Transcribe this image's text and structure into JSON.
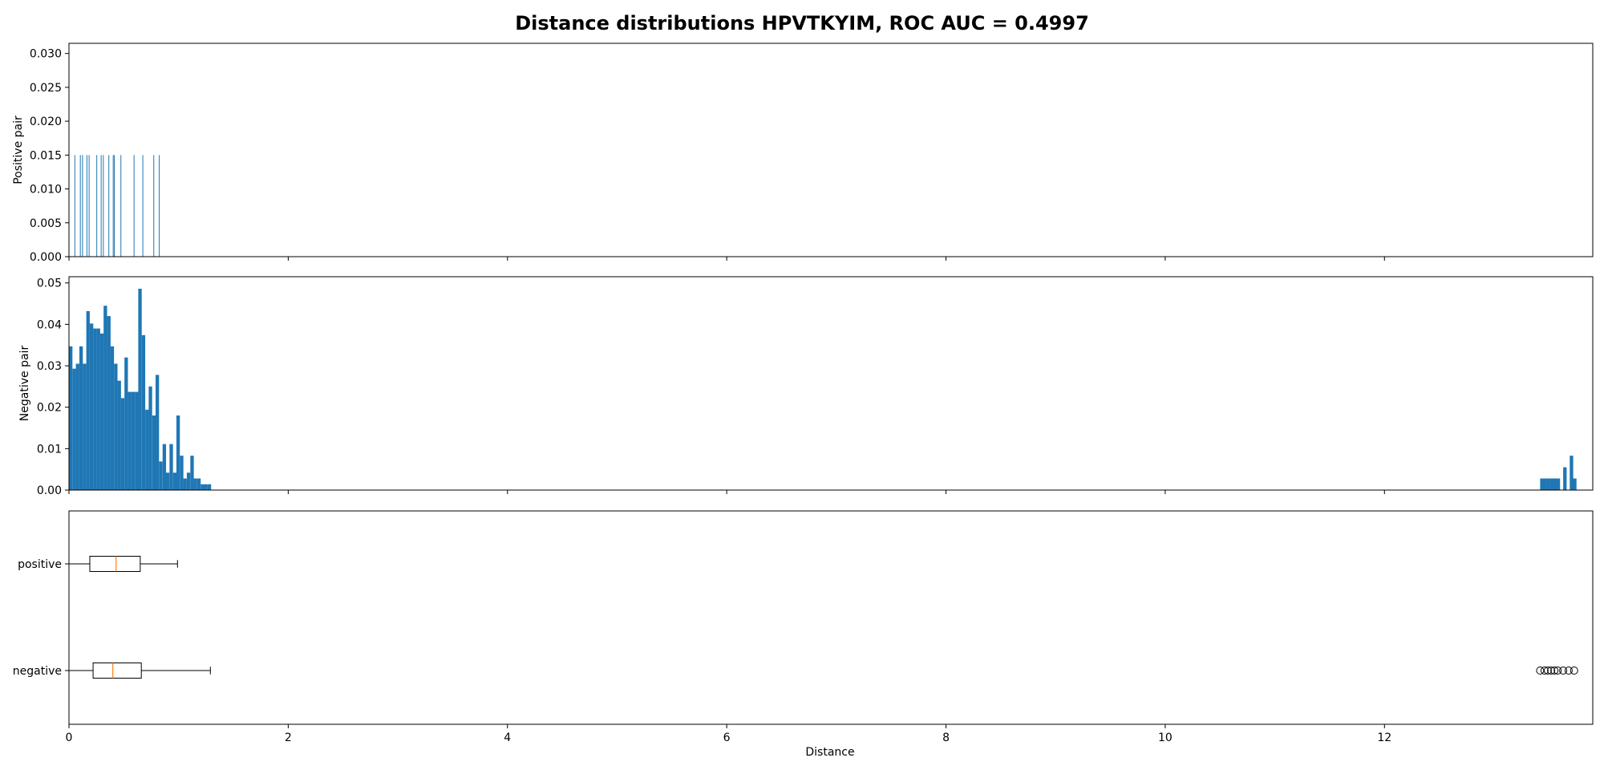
{
  "chart_data": {
    "type": "histogram+boxplot",
    "title": "Distance distributions HPVTKYIM, ROC AUC = 0.4997",
    "xlabel": "Distance",
    "xlim": [
      0,
      13.9
    ],
    "x_ticks": [
      "0",
      "2",
      "4",
      "6",
      "8",
      "10",
      "12"
    ],
    "x_tick_values": [
      0,
      2,
      4,
      6,
      8,
      10,
      12
    ],
    "bar_color": "#1f77b4",
    "median_color": "#ff7f0e",
    "panels": [
      {
        "name": "positive-histogram",
        "ylabel": "Positive pair",
        "ylim": [
          0,
          0.0315
        ],
        "y_ticks": [
          "0.000",
          "0.005",
          "0.010",
          "0.015",
          "0.020",
          "0.025",
          "0.030"
        ],
        "y_tick_values": [
          0,
          0.005,
          0.01,
          0.015,
          0.02,
          0.025,
          0.03
        ],
        "bin_width": 0.005,
        "bars": [
          [
            0.05,
            0.015
          ],
          [
            0.1,
            0.015
          ],
          [
            0.12,
            0.015
          ],
          [
            0.16,
            0.015
          ],
          [
            0.18,
            0.015
          ],
          [
            0.25,
            0.015
          ],
          [
            0.29,
            0.015
          ],
          [
            0.31,
            0.015
          ],
          [
            0.36,
            0.015
          ],
          [
            0.4,
            0.015
          ],
          [
            0.41,
            0.015
          ],
          [
            0.47,
            0.015
          ],
          [
            0.59,
            0.015
          ],
          [
            0.67,
            0.015
          ],
          [
            0.77,
            0.015
          ],
          [
            0.82,
            0.015
          ]
        ]
      },
      {
        "name": "negative-histogram",
        "ylabel": "Negative pair",
        "ylim": [
          0,
          0.0515
        ],
        "y_ticks": [
          "0.00",
          "0.01",
          "0.02",
          "0.03",
          "0.04",
          "0.05"
        ],
        "y_tick_values": [
          0,
          0.01,
          0.02,
          0.03,
          0.04,
          0.05
        ],
        "bin_width": 0.0316,
        "bars": [
          [
            0.0,
            0.0347
          ],
          [
            0.032,
            0.0293
          ],
          [
            0.063,
            0.0305
          ],
          [
            0.095,
            0.0347
          ],
          [
            0.126,
            0.0305
          ],
          [
            0.158,
            0.0432
          ],
          [
            0.19,
            0.0402
          ],
          [
            0.221,
            0.039
          ],
          [
            0.253,
            0.039
          ],
          [
            0.285,
            0.0378
          ],
          [
            0.316,
            0.0445
          ],
          [
            0.348,
            0.042
          ],
          [
            0.379,
            0.0347
          ],
          [
            0.411,
            0.0305
          ],
          [
            0.443,
            0.0264
          ],
          [
            0.474,
            0.0222
          ],
          [
            0.506,
            0.032
          ],
          [
            0.538,
            0.0237
          ],
          [
            0.569,
            0.0237
          ],
          [
            0.601,
            0.0237
          ],
          [
            0.632,
            0.0486
          ],
          [
            0.664,
            0.0374
          ],
          [
            0.696,
            0.0194
          ],
          [
            0.727,
            0.025
          ],
          [
            0.759,
            0.018
          ],
          [
            0.79,
            0.0278
          ],
          [
            0.822,
            0.0069
          ],
          [
            0.854,
            0.0111
          ],
          [
            0.885,
            0.0042
          ],
          [
            0.917,
            0.0111
          ],
          [
            0.949,
            0.0042
          ],
          [
            0.98,
            0.018
          ],
          [
            1.012,
            0.0083
          ],
          [
            1.043,
            0.0028
          ],
          [
            1.075,
            0.0042
          ],
          [
            1.107,
            0.0083
          ],
          [
            1.138,
            0.0028
          ],
          [
            1.17,
            0.0028
          ],
          [
            1.202,
            0.0014
          ],
          [
            1.233,
            0.0014
          ],
          [
            1.265,
            0.0014
          ],
          [
            1.296,
            0.0
          ],
          [
            1.328,
            0.0
          ],
          [
            13.42,
            0.0028
          ],
          [
            13.45,
            0.0028
          ],
          [
            13.48,
            0.0028
          ],
          [
            13.51,
            0.0028
          ],
          [
            13.54,
            0.0028
          ],
          [
            13.57,
            0.0028
          ],
          [
            13.63,
            0.0055
          ],
          [
            13.69,
            0.0083
          ],
          [
            13.72,
            0.0028
          ]
        ]
      }
    ],
    "boxplot": {
      "categories": [
        "positive",
        "negative"
      ],
      "boxes": [
        {
          "name": "positive",
          "whisker_low": 0.0,
          "q1": 0.19,
          "median": 0.43,
          "q3": 0.65,
          "whisker_high": 0.99,
          "outliers": []
        },
        {
          "name": "negative",
          "whisker_low": 0.0,
          "q1": 0.22,
          "median": 0.4,
          "q3": 0.66,
          "whisker_high": 1.29,
          "outliers": [
            13.42,
            13.46,
            13.49,
            13.52,
            13.55,
            13.58,
            13.63,
            13.68,
            13.73
          ]
        }
      ]
    }
  }
}
